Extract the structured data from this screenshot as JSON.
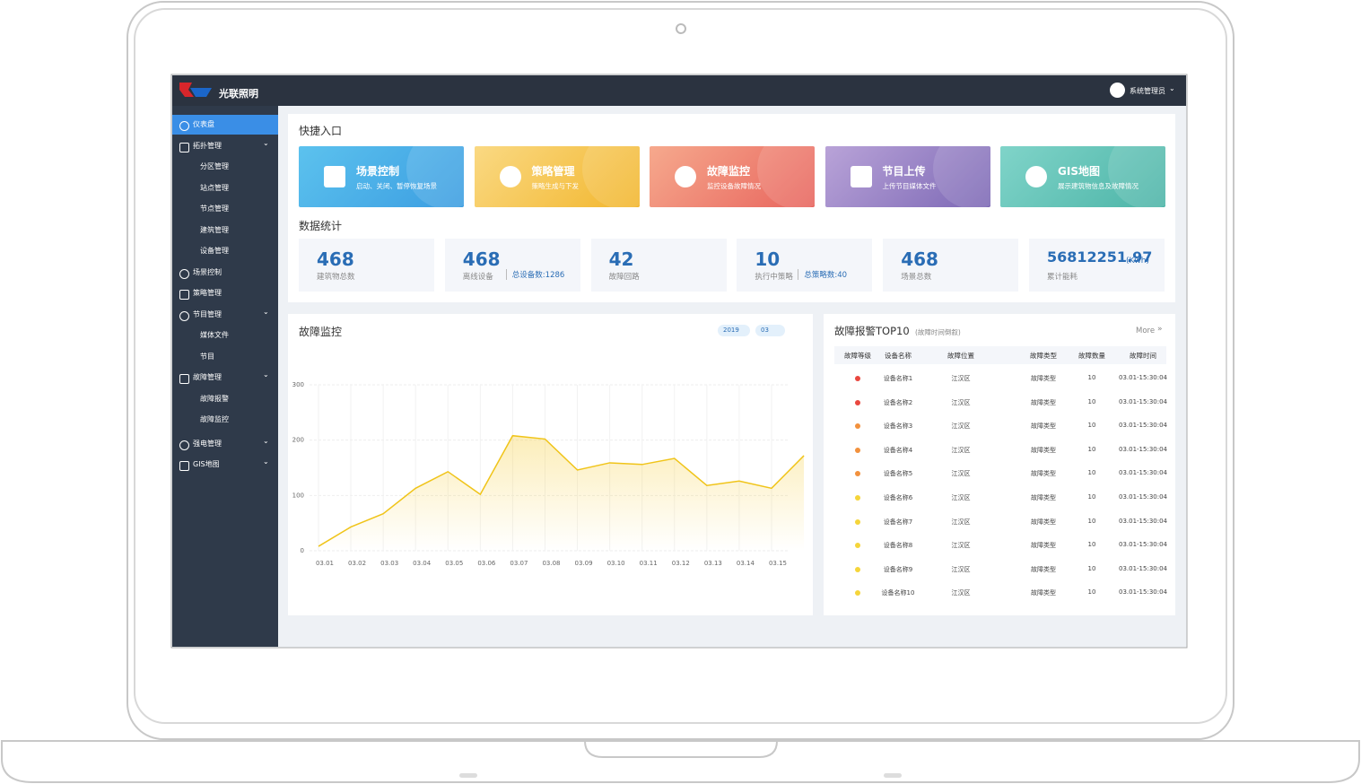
{
  "header": {
    "logo": "光联照明",
    "user": "系统管理员"
  },
  "sidebar": [
    {
      "label": "仪表盘"
    },
    {
      "label": "拓扑管理",
      "children": [
        "分区管理",
        "站点管理",
        "节点管理",
        "建筑管理",
        "设备管理"
      ]
    },
    {
      "label": "场景控制"
    },
    {
      "label": "策略管理"
    },
    {
      "label": "节目管理",
      "children": [
        "媒体文件",
        "节目"
      ]
    },
    {
      "label": "故障管理",
      "children": [
        "故障报警",
        "故障监控"
      ]
    },
    {
      "label": "强电管理"
    },
    {
      "label": "GIS地图"
    }
  ],
  "quick": {
    "title": "快捷入口",
    "cards": [
      {
        "title": "场景控制",
        "desc": "启动、关闭、暂停恢复场景"
      },
      {
        "title": "策略管理",
        "desc": "策略生成与下发"
      },
      {
        "title": "故障监控",
        "desc": "监控设备故障情况"
      },
      {
        "title": "节目上传",
        "desc": "上传节目媒体文件"
      },
      {
        "title": "GIS地图",
        "desc": "展示建筑物信息及故障情况"
      }
    ]
  },
  "stats": {
    "title": "数据统计",
    "items": [
      {
        "value": "468",
        "label": "建筑物总数"
      },
      {
        "value": "468",
        "label": "离线设备",
        "extra": "总设备数:1286"
      },
      {
        "value": "42",
        "label": "故障回路"
      },
      {
        "value": "10",
        "label": "执行中策略",
        "extra": "总策略数:40"
      },
      {
        "value": "468",
        "label": "场景总数"
      },
      {
        "value": "56812251.97",
        "unit": "(Kwh)",
        "label": "累计能耗"
      }
    ]
  },
  "chart_data": {
    "type": "line",
    "title": "故障监控",
    "filters": [
      "2019",
      "03"
    ],
    "categories": [
      "03.01",
      "03.02",
      "03.03",
      "03.04",
      "03.05",
      "03.06",
      "03.07",
      "03.08",
      "03.09",
      "03.10",
      "03.11",
      "03.12",
      "03.13",
      "03.14",
      "03.15",
      null
    ],
    "values": [
      8,
      43,
      67,
      113,
      143,
      102,
      208,
      202,
      146,
      159,
      156,
      167,
      118,
      126,
      113,
      172
    ],
    "color": "#f0c419",
    "ylim": [
      0,
      300
    ],
    "yticks": [
      0,
      100,
      200,
      300
    ],
    "grid": true
  },
  "alarms": {
    "title": "故障报警TOP10",
    "subtitle": "(故障时间倒叙)",
    "more": "More",
    "columns": [
      "故障等级",
      "设备名称",
      "故障位置",
      "故障类型",
      "故障数量",
      "故障时间"
    ],
    "rows": [
      {
        "level_color": "#e9473f",
        "cells": [
          "设备名称1",
          "江汉区",
          "故障类型",
          "10",
          "03.01-15:30:04"
        ]
      },
      {
        "level_color": "#e9473f",
        "cells": [
          "设备名称2",
          "江汉区",
          "故障类型",
          "10",
          "03.01-15:30:04"
        ]
      },
      {
        "level_color": "#f2913d",
        "cells": [
          "设备名称3",
          "江汉区",
          "故障类型",
          "10",
          "03.01-15:30:04"
        ]
      },
      {
        "level_color": "#f2913d",
        "cells": [
          "设备名称4",
          "江汉区",
          "故障类型",
          "10",
          "03.01-15:30:04"
        ]
      },
      {
        "level_color": "#f2913d",
        "cells": [
          "设备名称5",
          "江汉区",
          "故障类型",
          "10",
          "03.01-15:30:04"
        ]
      },
      {
        "level_color": "#f5d53a",
        "cells": [
          "设备名称6",
          "江汉区",
          "故障类型",
          "10",
          "03.01-15:30:04"
        ]
      },
      {
        "level_color": "#f5d53a",
        "cells": [
          "设备名称7",
          "江汉区",
          "故障类型",
          "10",
          "03.01-15:30:04"
        ]
      },
      {
        "level_color": "#f5d53a",
        "cells": [
          "设备名称8",
          "江汉区",
          "故障类型",
          "10",
          "03.01-15:30:04"
        ]
      },
      {
        "level_color": "#f5d53a",
        "cells": [
          "设备名称9",
          "江汉区",
          "故障类型",
          "10",
          "03.01-15:30:04"
        ]
      },
      {
        "level_color": "#f5d53a",
        "cells": [
          "设备名称10",
          "江汉区",
          "故障类型",
          "10",
          "03.01-15:30:04"
        ]
      }
    ]
  }
}
